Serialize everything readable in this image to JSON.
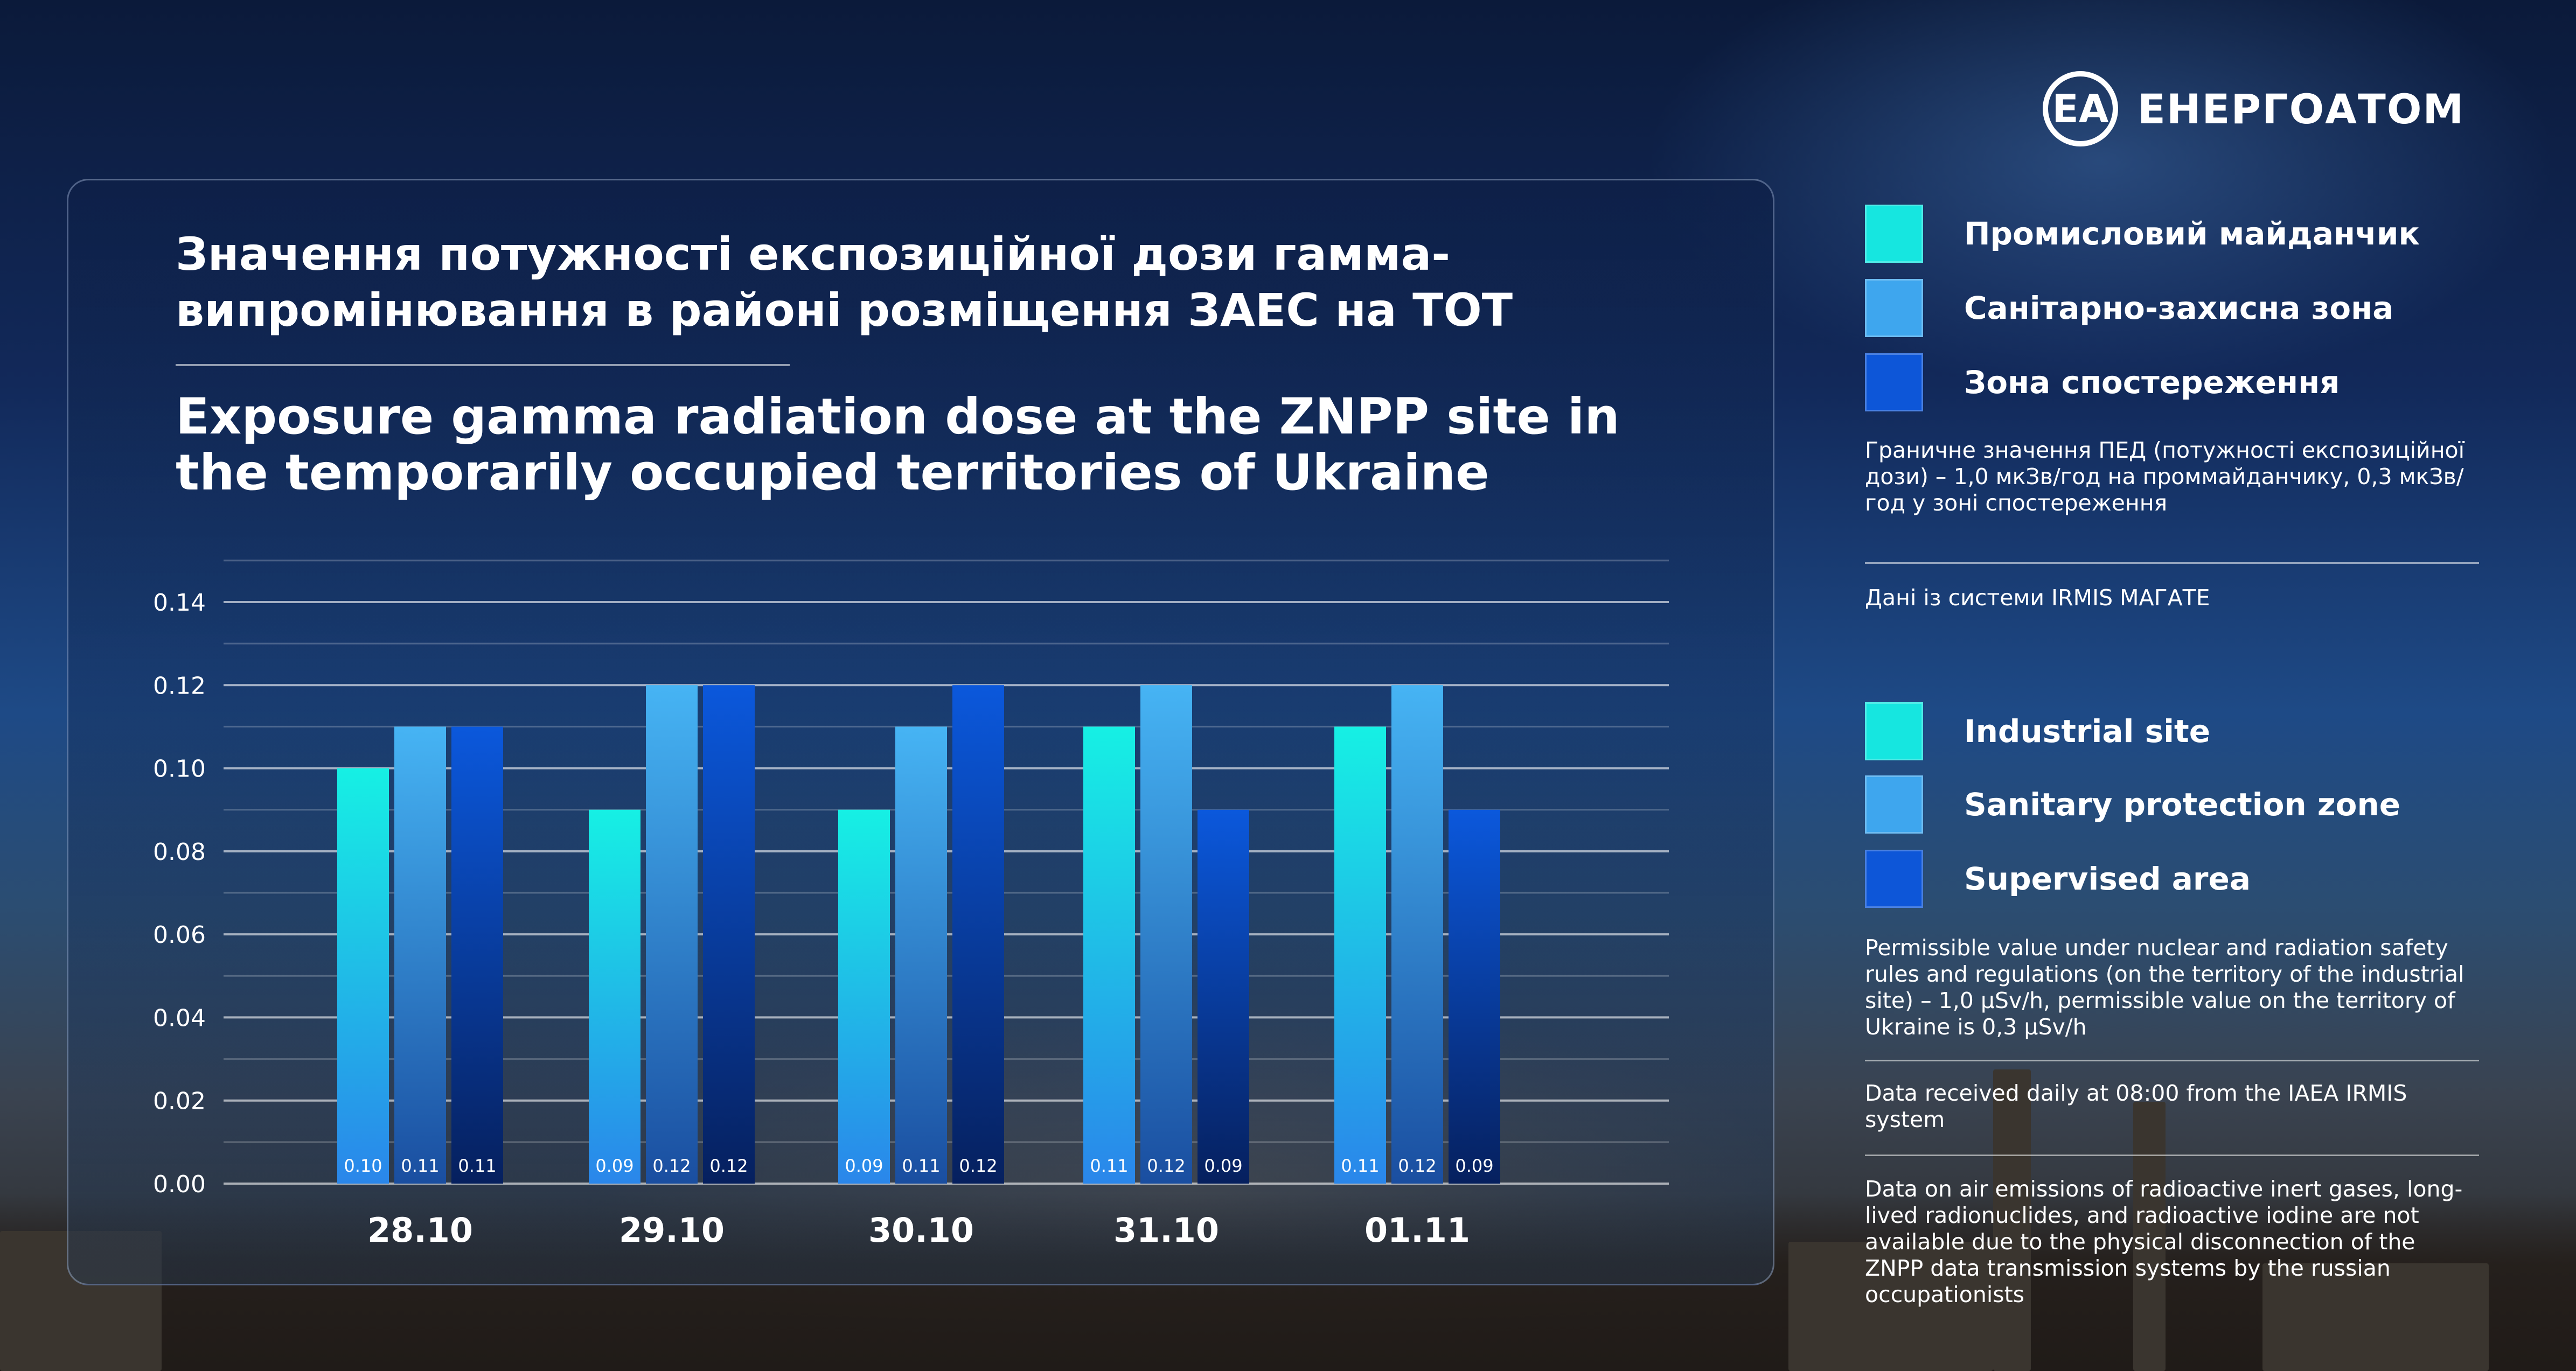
{
  "brand": {
    "logo_mark": "ЕА",
    "name": "ЕНЕРГОАТОМ"
  },
  "title": {
    "ua": "Значення потужності експозиційної дози гамма-випромінювання в районі розміщення ЗАЕС на ТОТ",
    "en": "Exposure gamma radiation dose at the ZNPP site in the temporarily occupied territories of Ukraine"
  },
  "legend_ua": [
    {
      "label": "Промисловий майданчик",
      "color": "#16e6e0"
    },
    {
      "label": "Санітарно-захисна зона",
      "color": "#3ea6ee"
    },
    {
      "label": "Зона спостереження",
      "color": "#0d56d8"
    }
  ],
  "legend_en": [
    {
      "label": "Industrial site",
      "color": "#16e6e0"
    },
    {
      "label": "Sanitary protection zone",
      "color": "#3ea6ee"
    },
    {
      "label": "Supervised area",
      "color": "#0d56d8"
    }
  ],
  "notes": {
    "ua_limit": "Граничне значення ПЕД (потужності експозиційної дози) – 1,0 мкЗв/год на проммайданчику, 0,3 мкЗв/год у зоні спостереження",
    "ua_source": "Дані із системи IRMIS МАГАТЕ",
    "en_limit": "Permissible value under nuclear and radiation safety rules and regulations (on the territory of the industrial site) – 1,0 μSv/h, permissible value on the territory of Ukraine is 0,3 μSv/h",
    "en_source": "Data received daily at 08:00 from the IAEA IRMIS system",
    "en_emissions": "Data on air emissions of radioactive inert gases, long-lived radionuclides, and radioactive iodine are not available due to the physical disconnection of the ZNPP data transmission systems by the russian occupationists"
  },
  "chart_data": {
    "type": "bar",
    "categories": [
      "28.10",
      "29.10",
      "30.10",
      "31.10",
      "01.11"
    ],
    "series": [
      {
        "name": "Промисловий майданчик",
        "color": "#16e6e0",
        "values": [
          0.1,
          0.09,
          0.09,
          0.11,
          0.11
        ],
        "labels": [
          "0.10",
          "0.09",
          "0.09",
          "0.11",
          "0.11"
        ]
      },
      {
        "name": "Санітарно-захисна зона",
        "color": "#3ea6ee",
        "values": [
          0.11,
          0.12,
          0.11,
          0.12,
          0.12
        ],
        "labels": [
          "0.11",
          "0.12",
          "0.11",
          "0.12",
          "0.12"
        ]
      },
      {
        "name": "Зона спостереження",
        "color": "#0d56d8",
        "values": [
          0.11,
          0.12,
          0.12,
          0.09,
          0.09
        ],
        "labels": [
          "0.11",
          "0.12",
          "0.12",
          "0.09",
          "0.09"
        ]
      }
    ],
    "y_ticks": [
      "0.00",
      "0.02",
      "0.04",
      "0.06",
      "0.08",
      "0.10",
      "0.12",
      "0.14"
    ],
    "ylim": [
      0,
      0.14
    ],
    "grid": true
  }
}
